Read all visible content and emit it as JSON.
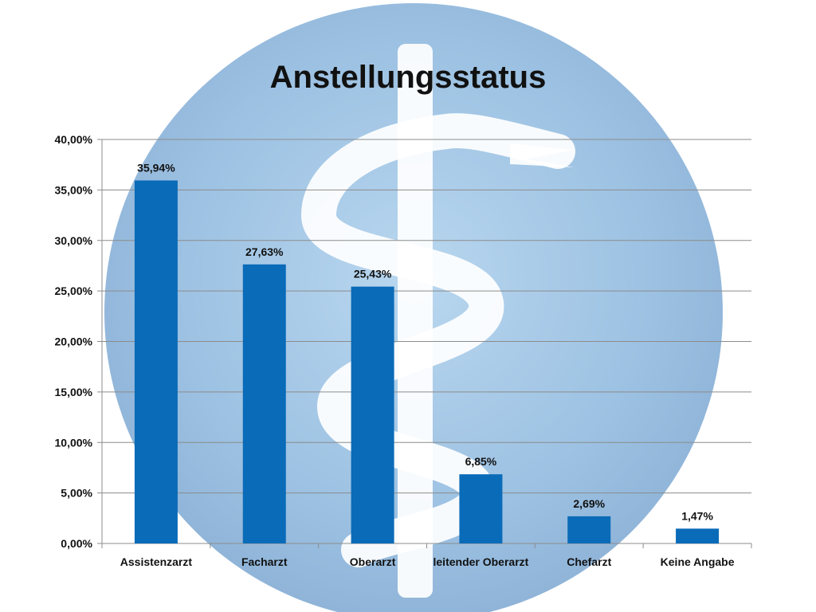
{
  "chart_data": {
    "type": "bar",
    "title": "Anstellungsstatus",
    "xlabel": "",
    "ylabel": "",
    "categories": [
      "Assistenzarzt",
      "Facharzt",
      "Oberarzt",
      "leitender Oberarzt",
      "Chefarzt",
      "Keine Angabe"
    ],
    "values": [
      35.94,
      27.63,
      25.43,
      6.85,
      2.69,
      1.47
    ],
    "data_labels": [
      "35,94%",
      "27,63%",
      "25,43%",
      "6,85%",
      "2,69%",
      "1,47%"
    ],
    "ylim": [
      0,
      40
    ],
    "y_ticks": [
      0,
      5,
      10,
      15,
      20,
      25,
      30,
      35,
      40
    ],
    "y_tick_labels": [
      "0,00%",
      "5,00%",
      "10,00%",
      "15,00%",
      "20,00%",
      "25,00%",
      "30,00%",
      "35,00%",
      "40,00%"
    ],
    "grid": true,
    "legend": "none",
    "bar_color": "#0a6bb8"
  },
  "background": {
    "emblem": "rod-of-asclepius-icon",
    "circle_color": "#9ec3e3",
    "symbol_color": "#ffffff"
  }
}
